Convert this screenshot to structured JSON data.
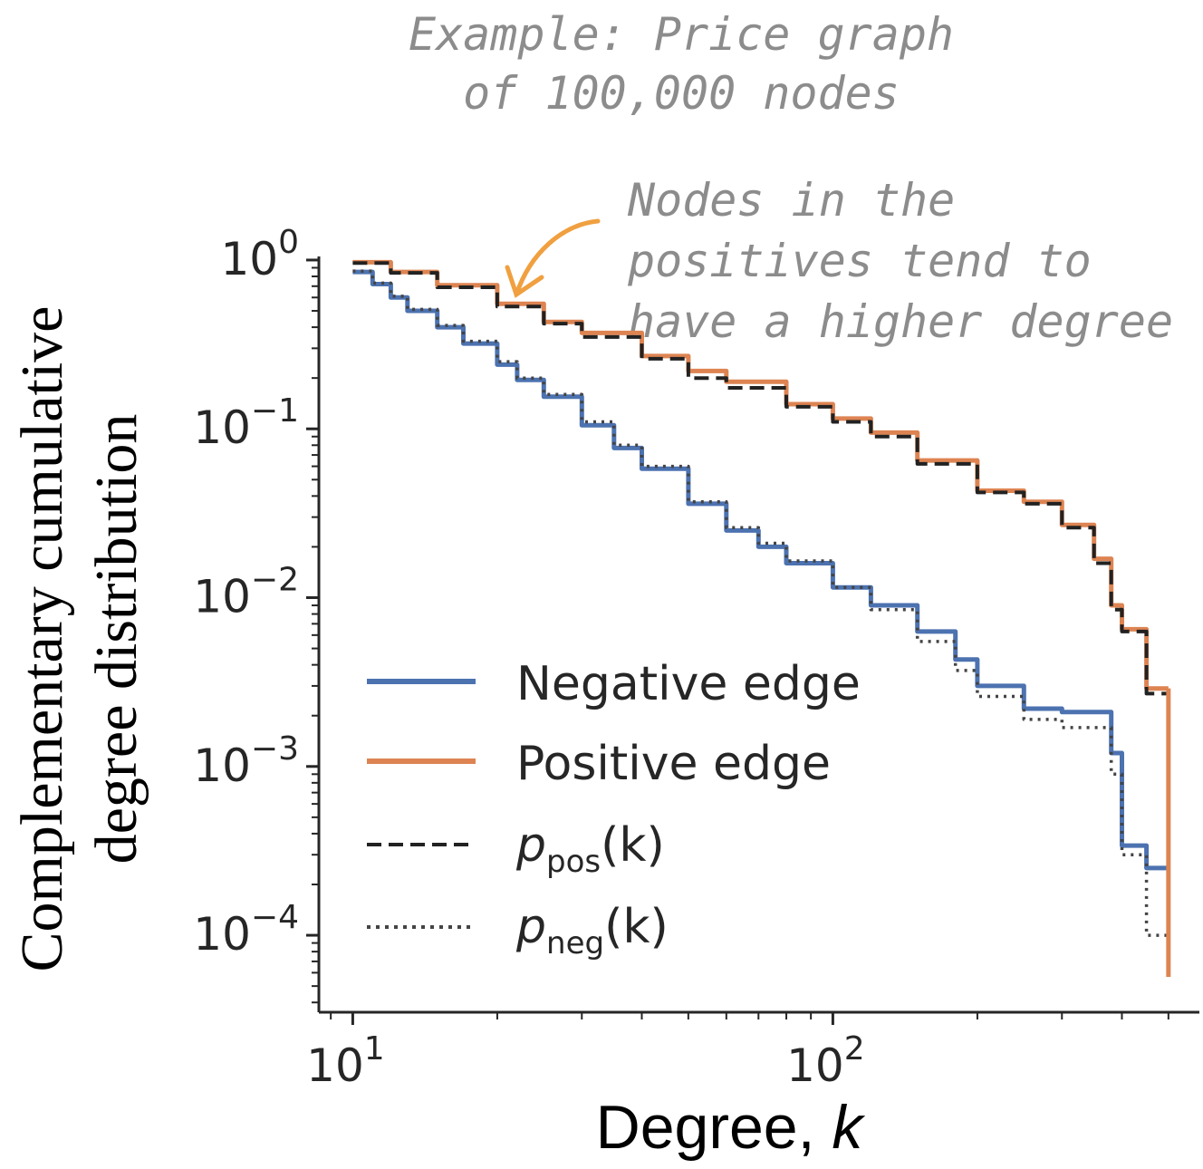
{
  "chart_data": {
    "type": "line",
    "title": "",
    "xlabel": "Degree, ",
    "xlabel_var": "k",
    "ylabel_lines": [
      "Complementary cumulative",
      "degree distribution"
    ],
    "xscale": "log",
    "yscale": "log",
    "xlim": [
      8.5,
      580
    ],
    "ylim": [
      3.5e-05,
      1.05
    ],
    "x_ticks": [
      {
        "value": 10,
        "base": "10",
        "exp": "1"
      },
      {
        "value": 100,
        "base": "10",
        "exp": "2"
      }
    ],
    "y_ticks": [
      {
        "value": 1,
        "base": "10",
        "exp": "0"
      },
      {
        "value": 0.1,
        "base": "10",
        "exp": "−1"
      },
      {
        "value": 0.01,
        "base": "10",
        "exp": "−2"
      },
      {
        "value": 0.001,
        "base": "10",
        "exp": "−3"
      },
      {
        "value": 0.0001,
        "base": "10",
        "exp": "−4"
      }
    ],
    "grid": false,
    "legend_position": "lower-left",
    "annotations": [
      {
        "lines": [
          "Example: Price graph",
          "of 100,000 nodes"
        ]
      },
      {
        "lines": [
          "Nodes in the",
          "positives tend to",
          "have a higher degree"
        ],
        "arrow_color": "#f0a040"
      }
    ],
    "series": [
      {
        "name": "Negative edge",
        "style": "solid",
        "color": "#4c72b0",
        "x": [
          10,
          11,
          12,
          13,
          15,
          17,
          20,
          22,
          25,
          30,
          35,
          40,
          50,
          60,
          70,
          80,
          100,
          120,
          150,
          180,
          200,
          250,
          300,
          380,
          400,
          450,
          500
        ],
        "y": [
          0.85,
          0.72,
          0.6,
          0.5,
          0.4,
          0.32,
          0.24,
          0.195,
          0.155,
          0.105,
          0.077,
          0.058,
          0.036,
          0.025,
          0.02,
          0.016,
          0.0115,
          0.009,
          0.0063,
          0.0043,
          0.003,
          0.0022,
          0.0021,
          0.0012,
          0.00034,
          0.00025,
          0.00025
        ]
      },
      {
        "name": "Positive edge",
        "style": "solid",
        "color": "#dd8452",
        "x": [
          10,
          12,
          15,
          20,
          25,
          30,
          40,
          50,
          60,
          80,
          100,
          120,
          150,
          200,
          250,
          300,
          350,
          380,
          400,
          450,
          500
        ],
        "y": [
          0.97,
          0.85,
          0.71,
          0.55,
          0.43,
          0.37,
          0.27,
          0.22,
          0.19,
          0.14,
          0.115,
          0.095,
          0.065,
          0.043,
          0.037,
          0.027,
          0.017,
          0.009,
          0.0065,
          0.0029,
          0.0029
        ]
      },
      {
        "name": "p",
        "name_sub": "pos",
        "name_suffix": "(k)",
        "style": "dashed",
        "color": "#222222",
        "x": [
          10,
          12,
          15,
          20,
          25,
          30,
          40,
          50,
          60,
          80,
          100,
          120,
          150,
          200,
          250,
          300,
          350,
          380,
          400,
          450,
          500
        ],
        "y": [
          0.96,
          0.84,
          0.69,
          0.53,
          0.42,
          0.35,
          0.26,
          0.2,
          0.175,
          0.135,
          0.11,
          0.09,
          0.062,
          0.042,
          0.036,
          0.026,
          0.016,
          0.0085,
          0.0063,
          0.0027,
          0.0027
        ]
      },
      {
        "name": "p",
        "name_sub": "neg",
        "name_suffix": "(k)",
        "style": "dotted",
        "color": "#444444",
        "x": [
          10,
          11,
          12,
          13,
          15,
          17,
          20,
          22,
          25,
          30,
          35,
          40,
          50,
          60,
          70,
          80,
          100,
          120,
          150,
          180,
          200,
          250,
          300,
          380,
          400,
          450,
          500
        ],
        "y": [
          0.86,
          0.73,
          0.61,
          0.51,
          0.41,
          0.33,
          0.25,
          0.2,
          0.16,
          0.11,
          0.08,
          0.06,
          0.037,
          0.026,
          0.021,
          0.0165,
          0.0115,
          0.0085,
          0.0055,
          0.0037,
          0.0026,
          0.0019,
          0.0017,
          0.0009,
          0.0003,
          0.0001,
          0.0001
        ]
      }
    ]
  }
}
